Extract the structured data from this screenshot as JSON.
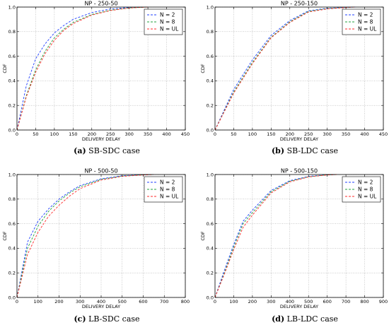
{
  "chart_data": [
    {
      "type": "line",
      "title": "NP - 250-50",
      "xlabel": "DELIVERY DELAY",
      "ylabel": "CDF",
      "xlim": [
        0,
        450
      ],
      "ylim": [
        0,
        1.0
      ],
      "xticks": [
        "0",
        "50",
        "100",
        "150",
        "200",
        "250",
        "300",
        "350",
        "400",
        "450"
      ],
      "yticks": [
        "0.0",
        "0.2",
        "0.4",
        "0.6",
        "0.8",
        "1.0"
      ],
      "grid": true,
      "legend_position": "top-right",
      "caption_tag": "(a)",
      "caption_text": "SB-SDC case",
      "series": [
        {
          "name": "N = 2",
          "color": "#1f3fff",
          "x": [
            0,
            25,
            50,
            75,
            100,
            125,
            150,
            200,
            250,
            300,
            350
          ],
          "y": [
            0,
            0.36,
            0.58,
            0.7,
            0.79,
            0.85,
            0.9,
            0.955,
            0.985,
            0.997,
            1.0
          ]
        },
        {
          "name": "N = 8",
          "color": "#22a03c",
          "x": [
            0,
            25,
            50,
            75,
            100,
            125,
            150,
            200,
            250,
            300,
            350
          ],
          "y": [
            0,
            0.28,
            0.49,
            0.64,
            0.75,
            0.82,
            0.875,
            0.94,
            0.975,
            0.993,
            1.0
          ]
        },
        {
          "name": "N = UL",
          "color": "#ff2a2a",
          "x": [
            0,
            25,
            50,
            75,
            100,
            125,
            150,
            200,
            250,
            300,
            350
          ],
          "y": [
            0,
            0.27,
            0.47,
            0.62,
            0.73,
            0.81,
            0.865,
            0.935,
            0.972,
            0.992,
            1.0
          ]
        }
      ]
    },
    {
      "type": "line",
      "title": "NP - 250-150",
      "xlabel": "DELIVERY DELAY",
      "ylabel": "CDF",
      "xlim": [
        0,
        450
      ],
      "ylim": [
        0,
        1.0
      ],
      "xticks": [
        "0",
        "50",
        "100",
        "150",
        "200",
        "250",
        "300",
        "350",
        "400",
        "450"
      ],
      "yticks": [
        "0.0",
        "0.2",
        "0.4",
        "0.6",
        "0.8",
        "1.0"
      ],
      "grid": true,
      "legend_position": "top-right",
      "caption_tag": "(b)",
      "caption_text": "SB-LDC case",
      "series": [
        {
          "name": "N = 2",
          "color": "#1f3fff",
          "x": [
            0,
            50,
            100,
            150,
            200,
            250,
            300,
            350,
            375
          ],
          "y": [
            0,
            0.33,
            0.57,
            0.77,
            0.89,
            0.97,
            0.99,
            0.998,
            1.0
          ]
        },
        {
          "name": "N = 8",
          "color": "#22a03c",
          "x": [
            0,
            50,
            100,
            150,
            200,
            250,
            300,
            350,
            375
          ],
          "y": [
            0,
            0.31,
            0.55,
            0.755,
            0.88,
            0.965,
            0.988,
            0.997,
            1.0
          ]
        },
        {
          "name": "N = UL",
          "color": "#ff2a2a",
          "x": [
            0,
            50,
            100,
            150,
            200,
            250,
            300,
            350,
            375
          ],
          "y": [
            0,
            0.3,
            0.54,
            0.75,
            0.875,
            0.96,
            0.985,
            0.996,
            1.0
          ]
        }
      ]
    },
    {
      "type": "line",
      "title": "NP - 500-50",
      "xlabel": "DELIVERY DELAY",
      "ylabel": "CDF",
      "xlim": [
        0,
        800
      ],
      "ylim": [
        0,
        1.0
      ],
      "xticks": [
        "0",
        "100",
        "200",
        "300",
        "400",
        "500",
        "600",
        "700",
        "800"
      ],
      "yticks": [
        "0.0",
        "0.2",
        "0.4",
        "0.6",
        "0.8",
        "1.0"
      ],
      "grid": true,
      "legend_position": "top-right",
      "caption_tag": "(c)",
      "caption_text": "LB-SDC case",
      "series": [
        {
          "name": "N = 2",
          "color": "#1f3fff",
          "x": [
            0,
            50,
            100,
            150,
            200,
            250,
            300,
            400,
            500,
            600,
            650
          ],
          "y": [
            0,
            0.45,
            0.62,
            0.72,
            0.8,
            0.86,
            0.91,
            0.965,
            0.99,
            0.998,
            1.0
          ]
        },
        {
          "name": "N = 8",
          "color": "#22a03c",
          "x": [
            0,
            50,
            100,
            150,
            200,
            250,
            300,
            400,
            500,
            600,
            650
          ],
          "y": [
            0,
            0.4,
            0.58,
            0.7,
            0.785,
            0.85,
            0.9,
            0.96,
            0.988,
            0.997,
            1.0
          ]
        },
        {
          "name": "N = UL",
          "color": "#ff2a2a",
          "x": [
            0,
            50,
            100,
            150,
            200,
            250,
            300,
            400,
            500,
            600,
            650
          ],
          "y": [
            0,
            0.35,
            0.53,
            0.66,
            0.75,
            0.825,
            0.885,
            0.955,
            0.985,
            0.996,
            1.0
          ]
        }
      ]
    },
    {
      "type": "line",
      "title": "NP - 500-150",
      "xlabel": "DELIVERY DELAY",
      "ylabel": "CDF",
      "xlim": [
        0,
        900
      ],
      "ylim": [
        0,
        1.0
      ],
      "xticks": [
        "0",
        "100",
        "200",
        "300",
        "400",
        "500",
        "600",
        "700",
        "800",
        "900"
      ],
      "yticks": [
        "0.0",
        "0.2",
        "0.4",
        "0.6",
        "0.8",
        "1.0"
      ],
      "grid": true,
      "legend_position": "top-right",
      "caption_tag": "(d)",
      "caption_text": "LB-LDC case",
      "series": [
        {
          "name": "N = 2",
          "color": "#1f3fff",
          "x": [
            0,
            50,
            100,
            150,
            200,
            300,
            400,
            500,
            600,
            650
          ],
          "y": [
            0,
            0.22,
            0.43,
            0.62,
            0.71,
            0.87,
            0.95,
            0.985,
            0.998,
            1.0
          ]
        },
        {
          "name": "N = 8",
          "color": "#22a03c",
          "x": [
            0,
            50,
            100,
            150,
            200,
            300,
            400,
            500,
            600,
            650
          ],
          "y": [
            0,
            0.2,
            0.41,
            0.6,
            0.69,
            0.86,
            0.945,
            0.982,
            0.997,
            1.0
          ]
        },
        {
          "name": "N = UL",
          "color": "#ff2a2a",
          "x": [
            0,
            50,
            100,
            150,
            200,
            300,
            400,
            500,
            600,
            650
          ],
          "y": [
            0,
            0.19,
            0.39,
            0.57,
            0.67,
            0.85,
            0.94,
            0.98,
            0.996,
            1.0
          ]
        }
      ]
    }
  ]
}
